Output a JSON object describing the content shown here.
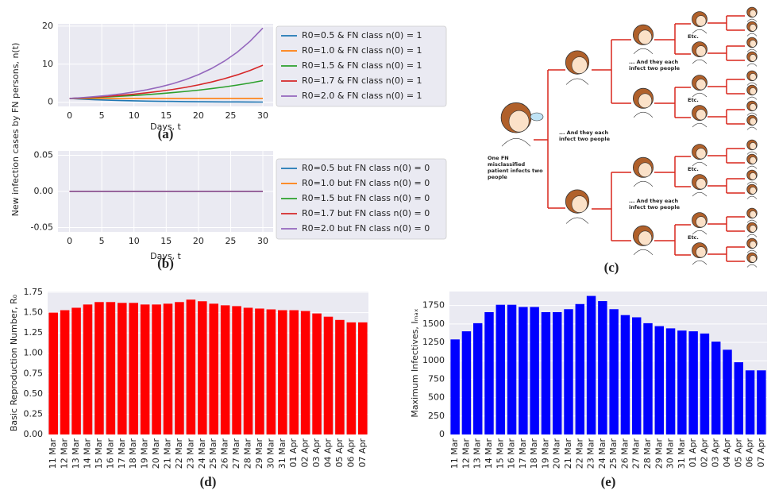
{
  "chart_data": [
    {
      "type": "line",
      "panel": "(a)",
      "xlabel": "Days, t",
      "ylabel": "New infection cases by FN persons, n(t)",
      "x": [
        0,
        2,
        4,
        6,
        8,
        10,
        12,
        14,
        16,
        18,
        20,
        22,
        24,
        26,
        28,
        30
      ],
      "series": [
        {
          "name": "R0=0.5 & FN class n(0) = 1",
          "color": "#1f77b4",
          "values": [
            1,
            0.82,
            0.67,
            0.55,
            0.45,
            0.37,
            0.3,
            0.25,
            0.21,
            0.17,
            0.14,
            0.11,
            0.09,
            0.08,
            0.06,
            0.05
          ]
        },
        {
          "name": "R0=1.0 & FN class n(0) = 1",
          "color": "#ff7f0e",
          "values": [
            1,
            1,
            1,
            1,
            1,
            1,
            1,
            1,
            1,
            1,
            1,
            1,
            1,
            1,
            1,
            1
          ]
        },
        {
          "name": "R0=1.5 & FN class n(0) = 1",
          "color": "#2ca02c",
          "values": [
            1,
            1.12,
            1.26,
            1.42,
            1.59,
            1.78,
            2.0,
            2.25,
            2.53,
            2.84,
            3.18,
            3.58,
            4.01,
            4.51,
            5.06,
            5.68
          ]
        },
        {
          "name": "R0=1.7 & FN class n(0) = 1",
          "color": "#d62728",
          "values": [
            1,
            1.16,
            1.35,
            1.58,
            1.83,
            2.13,
            2.48,
            2.89,
            3.36,
            3.91,
            4.56,
            5.3,
            6.17,
            7.18,
            8.35,
            9.72
          ]
        },
        {
          "name": "R0=2.0 & FN class n(0) = 1",
          "color": "#9467bd",
          "values": [
            1,
            1.22,
            1.49,
            1.81,
            2.21,
            2.69,
            3.28,
            4,
            4.88,
            5.94,
            7.25,
            8.83,
            10.77,
            13.12,
            16,
            19.5
          ]
        }
      ],
      "xlim": [
        -1.8,
        31.6
      ],
      "ylim": [
        -1.1,
        20.6
      ],
      "xticks": [
        0,
        5,
        10,
        15,
        20,
        25,
        30
      ],
      "yticks": [
        0,
        10,
        20
      ],
      "grid": true,
      "legend": "outside right"
    },
    {
      "type": "line",
      "panel": "(b)",
      "xlabel": "Days, t",
      "x": [
        0,
        30
      ],
      "series": [
        {
          "name": "R0=0.5 but FN class n(0) = 0",
          "color": "#1f77b4",
          "values": [
            0,
            0
          ]
        },
        {
          "name": "R0=1.0 but FN class n(0) = 0",
          "color": "#ff7f0e",
          "values": [
            0,
            0
          ]
        },
        {
          "name": "R0=1.5 but FN class n(0) = 0",
          "color": "#2ca02c",
          "values": [
            0,
            0
          ]
        },
        {
          "name": "R0=1.7 but FN class n(0) = 0",
          "color": "#d62728",
          "values": [
            0,
            0
          ]
        },
        {
          "name": "R0=2.0 but FN class n(0) = 0",
          "color": "#9467bd",
          "values": [
            0,
            0
          ]
        }
      ],
      "xlim": [
        -1.8,
        31.6
      ],
      "ylim": [
        -0.056,
        0.056
      ],
      "xticks": [
        0,
        5,
        10,
        15,
        20,
        25,
        30
      ],
      "yticks": [
        {
          "value": -0.05,
          "label": "-0.05"
        },
        {
          "value": 0,
          "label": "0.00"
        },
        {
          "value": 0.05,
          "label": "0.05"
        }
      ],
      "grid": true,
      "legend": "outside right"
    },
    {
      "type": "bar",
      "panel": "(d)",
      "ylabel": "Basic Reproduction Number, R₀",
      "color": "#ff0000",
      "categories": [
        "11 Mar",
        "12 Mar",
        "13 Mar",
        "14 Mar",
        "15 Mar",
        "16 Mar",
        "17 Mar",
        "18 Mar",
        "19 Mar",
        "20 Mar",
        "21 Mar",
        "22 Mar",
        "23 Mar",
        "24 Mar",
        "25 Mar",
        "26 Mar",
        "27 Mar",
        "28 Mar",
        "29 Mar",
        "30 Mar",
        "31 Mar",
        "01 Apr",
        "02 Apr",
        "03 Apr",
        "04 Apr",
        "05 Apr",
        "06 Apr",
        "07 Apr"
      ],
      "values": [
        1.5,
        1.53,
        1.56,
        1.6,
        1.63,
        1.63,
        1.62,
        1.62,
        1.6,
        1.6,
        1.61,
        1.63,
        1.66,
        1.64,
        1.61,
        1.59,
        1.58,
        1.56,
        1.55,
        1.54,
        1.53,
        1.53,
        1.52,
        1.49,
        1.45,
        1.41,
        1.38,
        1.38
      ],
      "ylim": [
        0,
        1.76
      ],
      "yticks": [
        {
          "value": 0,
          "label": "0.00"
        },
        {
          "value": 0.25,
          "label": "0.25"
        },
        {
          "value": 0.5,
          "label": "0.50"
        },
        {
          "value": 0.75,
          "label": "0.75"
        },
        {
          "value": 1,
          "label": "1.00"
        },
        {
          "value": 1.25,
          "label": "1.25"
        },
        {
          "value": 1.5,
          "label": "1.50"
        },
        {
          "value": 1.75,
          "label": "1.75"
        }
      ],
      "grid": true
    },
    {
      "type": "bar",
      "panel": "(e)",
      "ylabel": "Maximum Infectives, Iₘₐₓ",
      "color": "#0000ff",
      "categories": [
        "11 Mar",
        "12 Mar",
        "13 Mar",
        "14 Mar",
        "15 Mar",
        "16 Mar",
        "17 Mar",
        "18 Mar",
        "19 Mar",
        "20 Mar",
        "21 Mar",
        "22 Mar",
        "23 Mar",
        "24 Mar",
        "25 Mar",
        "26 Mar",
        "27 Mar",
        "28 Mar",
        "29 Mar",
        "30 Mar",
        "31 Mar",
        "01 Apr",
        "02 Apr",
        "03 Apr",
        "04 Apr",
        "05 Apr",
        "06 Apr",
        "07 Apr"
      ],
      "values": [
        1290,
        1400,
        1510,
        1660,
        1760,
        1760,
        1730,
        1730,
        1660,
        1660,
        1700,
        1770,
        1880,
        1810,
        1700,
        1620,
        1590,
        1510,
        1470,
        1440,
        1410,
        1400,
        1370,
        1260,
        1150,
        980,
        870,
        870
      ],
      "ylim": [
        0,
        1940
      ],
      "yticks": [
        0,
        250,
        500,
        750,
        1000,
        1250,
        1500,
        1750
      ],
      "grid": true
    }
  ],
  "diagram": {
    "panel": "(c)",
    "caption": "One FN misclassified patient infects two people",
    "notes": [
      "... And they each infect two people",
      "... And they each infect two people",
      "... And they each infect two people"
    ],
    "etc": [
      "Etc.",
      "Etc.",
      "Etc.",
      "Etc."
    ]
  }
}
